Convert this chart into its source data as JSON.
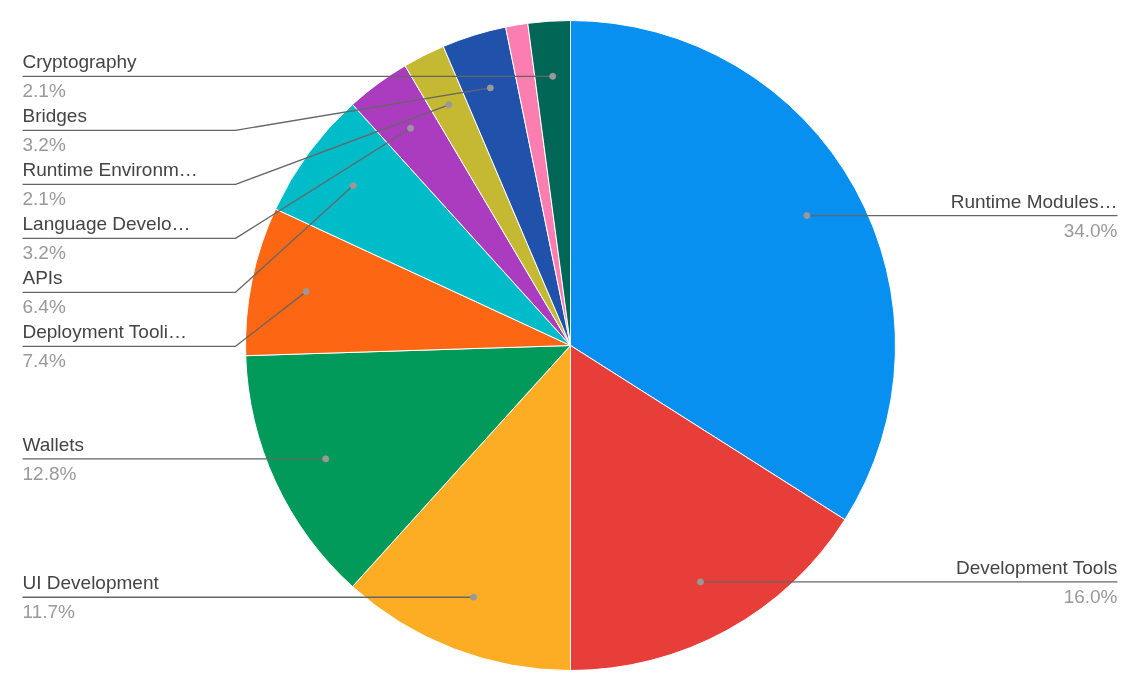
{
  "chart_data": {
    "type": "pie",
    "categories": [
      "Runtime Modules…",
      "Development Tools",
      "UI Development",
      "Wallets",
      "Deployment Tooli…",
      "APIs",
      "Language Develo…",
      "Runtime Environm…",
      "Bridges",
      null,
      "Cryptography"
    ],
    "values": [
      34.0,
      16.0,
      11.7,
      12.8,
      7.4,
      6.4,
      3.2,
      2.1,
      3.2,
      1.1,
      2.1
    ],
    "value_labels": [
      "34.0%",
      "16.0%",
      "11.7%",
      "12.8%",
      "7.4%",
      "6.4%",
      "3.2%",
      "2.1%",
      "3.2%",
      null,
      "2.1%"
    ],
    "colors": [
      "#0790ef",
      "#e83e3a",
      "#fdad24",
      "#029a5a",
      "#fd6612",
      "#00bcc8",
      "#ab3cc0",
      "#c5b833",
      "#2052ab",
      "#fc7eb1",
      "#006757"
    ]
  }
}
